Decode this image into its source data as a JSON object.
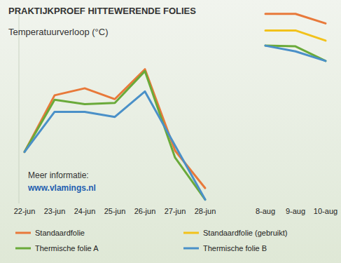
{
  "chart_data": {
    "type": "line",
    "title": "PRAKTIJKPROEF HITTEWERENDE FOLIES",
    "subtitle": "Temperatuurverloop (°C)",
    "annotations": [
      "Meer informatie:",
      "www.vlamings.nl"
    ],
    "categories": [
      "22-jun",
      "23-jun",
      "24-jun",
      "25-jun",
      "26-jun",
      "27-jun",
      "28-jun",
      null,
      "8-aug",
      "9-aug",
      "10-aug"
    ],
    "series": [
      {
        "name": "Standaardfolie",
        "color": "#e8793a",
        "values": [
          23.1,
          32.0,
          33.1,
          31.4,
          36.1,
          23.3,
          17.4,
          null,
          44.8,
          44.8,
          43.3
        ]
      },
      {
        "name": "Standaardfolie (gebruikt)",
        "color": "#f2c21b",
        "values": [
          null,
          null,
          null,
          null,
          null,
          null,
          null,
          null,
          42.2,
          42.2,
          40.6
        ]
      },
      {
        "name": "Thermische folie A",
        "color": "#6aaa3a",
        "values": [
          23.1,
          31.3,
          30.6,
          30.8,
          35.8,
          22.2,
          15.6,
          null,
          39.8,
          39.7,
          37.4
        ]
      },
      {
        "name": "Thermische folie B",
        "color": "#4a90c8",
        "values": [
          23.1,
          29.4,
          29.4,
          28.6,
          32.6,
          24.1,
          15.6,
          null,
          39.8,
          38.9,
          37.4
        ]
      }
    ],
    "ylim": [
      15,
      45
    ],
    "tick_labels": "x",
    "legend": "bottom",
    "grid": false
  }
}
